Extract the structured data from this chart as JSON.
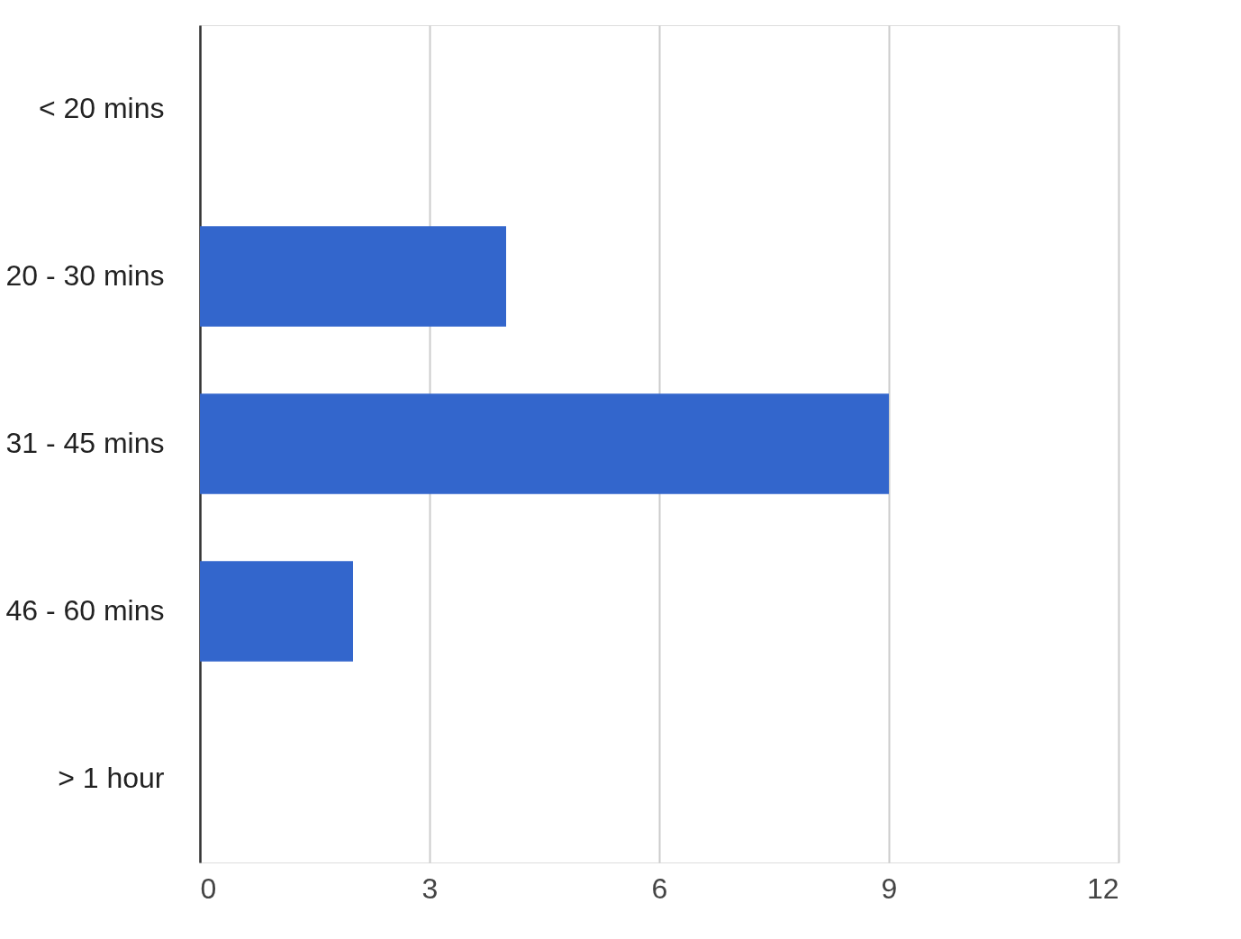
{
  "chart_data": {
    "type": "bar",
    "orientation": "horizontal",
    "categories": [
      "< 20 mins",
      "20 - 30 mins",
      "31 - 45 mins",
      "46 - 60 mins",
      "> 1 hour"
    ],
    "values": [
      0,
      4,
      9,
      2,
      0
    ],
    "color": "#3366cc",
    "xlim": [
      0,
      12
    ],
    "xticks": [
      0,
      3,
      6,
      9,
      12
    ],
    "grid": "x"
  }
}
